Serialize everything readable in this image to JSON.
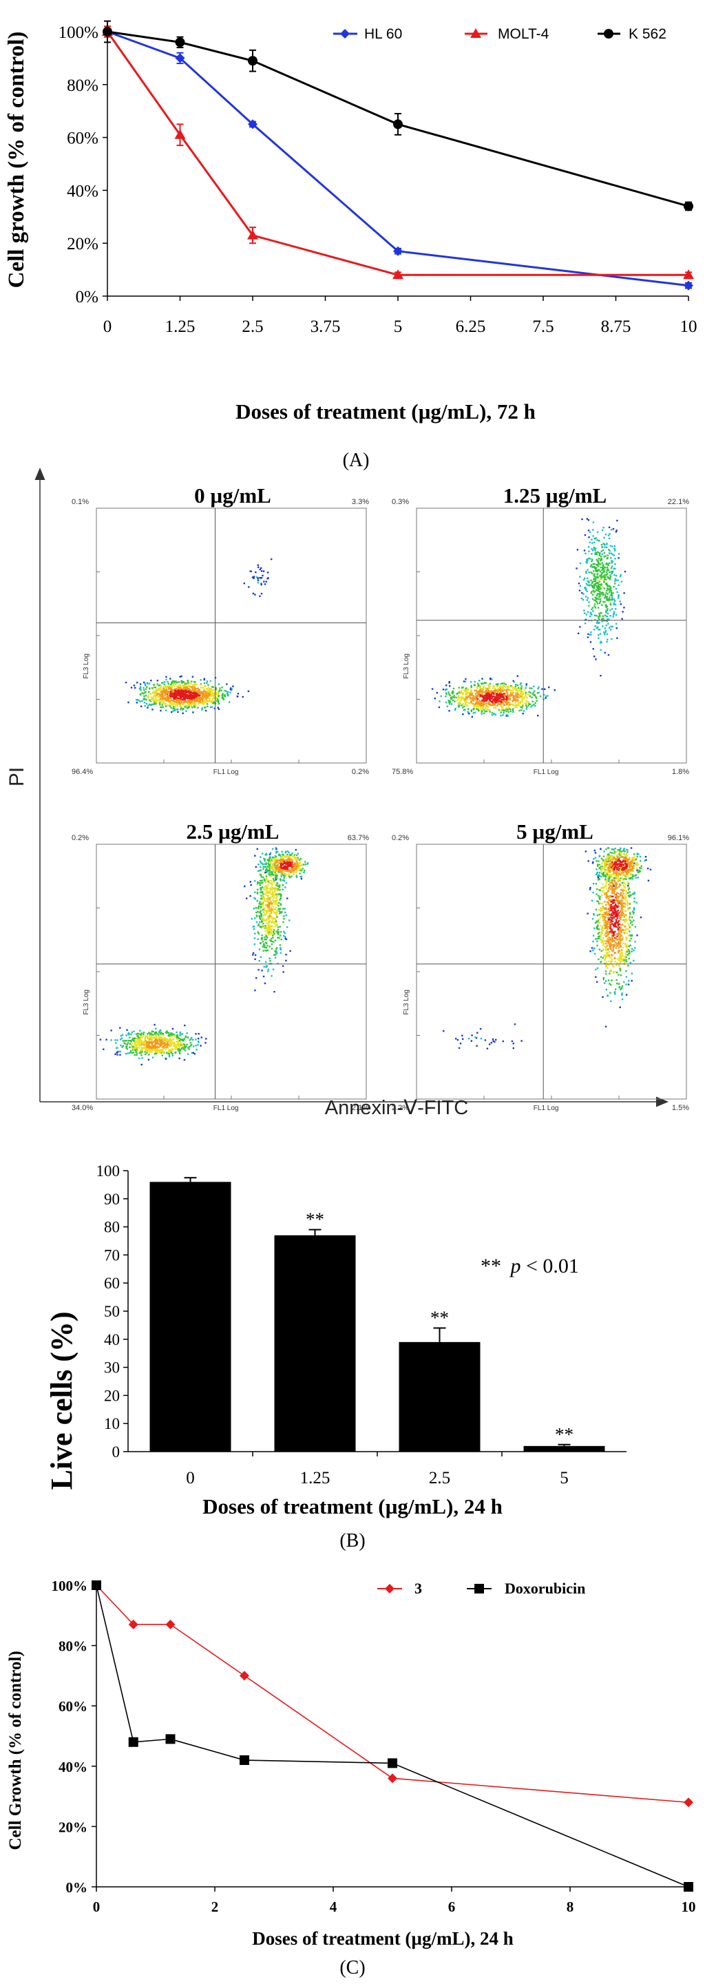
{
  "panel_labels": {
    "a": "(A)",
    "b": "(B)",
    "c": "(C)"
  },
  "panel_a": {
    "chart_data": {
      "type": "line",
      "x": [
        0,
        1.25,
        2.5,
        5,
        10
      ],
      "xticks": [
        "0",
        "1.25",
        "2.5",
        "3.75",
        "5",
        "6.25",
        "7.5",
        "8.75",
        "10"
      ],
      "yticks": [
        "0%",
        "20%",
        "40%",
        "60%",
        "80%",
        "100%"
      ],
      "ylim": [
        0,
        100
      ],
      "xlabel": "Doses of treatment (µg/mL), 72 h",
      "ylabel": "Cell growth (% of control)",
      "legend_position": "top-right",
      "series": [
        {
          "name": "HL 60",
          "color": "#1f35e0",
          "marker": "diamond",
          "values": [
            100,
            90,
            65,
            17,
            4
          ],
          "errors": [
            2,
            2,
            1,
            1,
            1
          ]
        },
        {
          "name": "MOLT-4",
          "color": "#e8191b",
          "marker": "triangle",
          "values": [
            100,
            61,
            23,
            8,
            8
          ],
          "errors": [
            2,
            4,
            3,
            1,
            1
          ]
        },
        {
          "name": "K 562",
          "color": "#000000",
          "marker": "circle",
          "values": [
            100,
            96,
            89,
            65,
            34
          ],
          "errors": [
            4,
            2,
            4,
            4,
            1.5
          ]
        }
      ]
    }
  },
  "flow": {
    "y_axis_label": "PI",
    "x_axis_label": "Annexin-Ⅴ-FITC",
    "axis_x_name": "FL1 Log",
    "axis_y_name": "FL3 Log",
    "panels": [
      {
        "title": "0 µg/mL",
        "ul": "0.1%",
        "ur": "3.3%",
        "ll": "96.4%",
        "lr": "0.2%"
      },
      {
        "title": "1.25 µg/mL",
        "ul": "0.3%",
        "ur": "22.1%",
        "ll": "75.8%",
        "lr": "1.8%"
      },
      {
        "title": "2.5  µg/mL",
        "ul": "0.2%",
        "ur": "63.7%",
        "ll": "34.0%",
        "lr": "2.1%"
      },
      {
        "title": "5 µg/mL",
        "ul": "0.2%",
        "ur": "96.1%",
        "ll": "2.2%",
        "lr": "1.5%"
      }
    ]
  },
  "panel_b": {
    "chart_data": {
      "type": "bar",
      "categories": [
        "0",
        "1.25",
        "2.5",
        "5"
      ],
      "values": [
        96,
        77,
        39,
        2
      ],
      "errors": [
        1.5,
        2,
        5,
        0.5
      ],
      "significance": [
        "",
        "**",
        "**",
        "**"
      ],
      "ylim": [
        0,
        100
      ],
      "yticks": [
        "0",
        "10",
        "20",
        "30",
        "40",
        "50",
        "60",
        "70",
        "80",
        "90",
        "100"
      ],
      "ylabel": "Live cells (%)",
      "xlabel": "Doses of treatment (µg/mL), 24 h",
      "annotation": {
        "stars": "**",
        "p": "p",
        "rest": " < 0.01"
      },
      "bar_color": "#000000"
    }
  },
  "panel_c": {
    "chart_data": {
      "type": "line",
      "xticks": [
        "0",
        "2",
        "4",
        "6",
        "8",
        "10"
      ],
      "yticks": [
        "0%",
        "20%",
        "40%",
        "60%",
        "80%",
        "100%"
      ],
      "ylim": [
        0,
        100
      ],
      "xlim": [
        0,
        10
      ],
      "ylabel": "Cell Growth (% of control)",
      "xlabel": "Doses of treatment (µg/mL), 24 h",
      "legend_position": "top",
      "series": [
        {
          "name": "3",
          "color": "#e8191b",
          "marker": "diamond",
          "x": [
            0,
            0.625,
            1.25,
            2.5,
            5,
            10
          ],
          "values": [
            100,
            87,
            87,
            70,
            36,
            28
          ]
        },
        {
          "name": "Doxorubicin",
          "color": "#000000",
          "marker": "square",
          "x": [
            0,
            0.625,
            1.25,
            2.5,
            5,
            10
          ],
          "values": [
            100,
            48,
            49,
            42,
            41,
            0
          ]
        }
      ]
    }
  }
}
